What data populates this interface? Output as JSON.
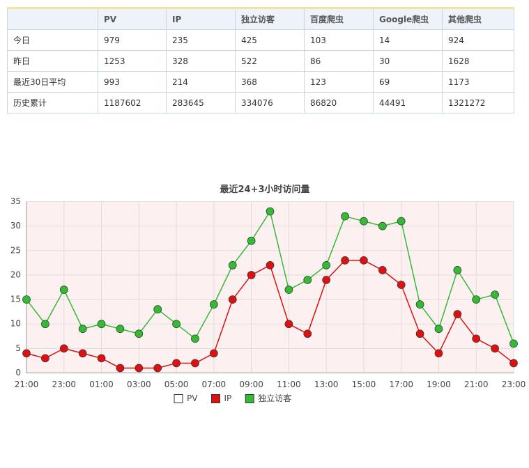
{
  "table": {
    "header": [
      null,
      "PV",
      "IP",
      "独立访客",
      "百度爬虫",
      "Google爬虫",
      "其他爬虫"
    ],
    "rows": [
      [
        "今日",
        "979",
        "235",
        "425",
        "103",
        "14",
        "924"
      ],
      [
        "昨日",
        "1253",
        "328",
        "522",
        "86",
        "30",
        "1628"
      ],
      [
        "最近30日平均",
        "993",
        "214",
        "368",
        "123",
        "69",
        "1173"
      ],
      [
        "历史累计",
        "1187602",
        "283645",
        "334076",
        "86820",
        "44491",
        "1321272"
      ]
    ]
  },
  "chart_data": {
    "type": "line",
    "title": "最近24+3小时访问量",
    "categories": [
      "21:00",
      null,
      "23:00",
      null,
      "01:00",
      null,
      "03:00",
      null,
      "05:00",
      null,
      "07:00",
      null,
      "09:00",
      null,
      "11:00",
      null,
      "13:00",
      null,
      "15:00",
      null,
      "17:00",
      null,
      "19:00",
      null,
      "21:00",
      null,
      "23:00"
    ],
    "series": [
      {
        "name": "PV",
        "color": "#ffffff",
        "values": [
          null,
          null,
          null,
          null,
          null,
          null,
          null,
          null,
          null,
          null,
          null,
          null,
          null,
          null,
          null,
          null,
          null,
          null,
          null,
          null,
          null,
          null,
          null,
          null,
          null,
          null,
          null
        ]
      },
      {
        "name": "IP",
        "color": "#dd1111",
        "values": [
          4,
          3,
          5,
          4,
          3,
          1,
          1,
          1,
          2,
          2,
          4,
          15,
          20,
          22,
          10,
          8,
          19,
          23,
          23,
          21,
          18,
          8,
          4,
          12,
          7,
          5,
          2
        ]
      },
      {
        "name": "独立访客",
        "color": "#33bb33",
        "values": [
          15,
          10,
          17,
          9,
          10,
          9,
          8,
          13,
          10,
          7,
          14,
          22,
          27,
          33,
          17,
          19,
          22,
          32,
          31,
          30,
          31,
          14,
          9,
          21,
          15,
          16,
          6
        ]
      }
    ],
    "ylim": [
      0,
      35
    ],
    "yticks": [
      0,
      5,
      10,
      15,
      20,
      25,
      30,
      35
    ],
    "grid": true,
    "legend": "bottom"
  }
}
